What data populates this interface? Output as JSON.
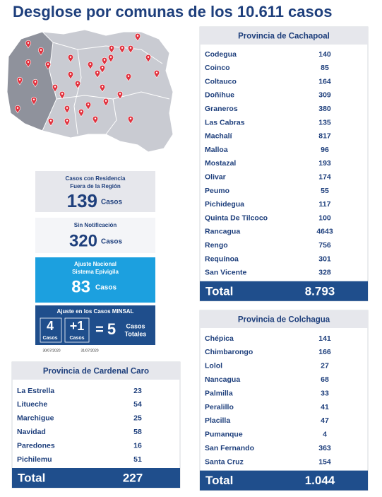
{
  "header": {
    "title": "Desglose por comunas de los 10.611 casos"
  },
  "summary": {
    "outside_region": {
      "label_lines": [
        "Casos con Residencia",
        "Fuera de la Región"
      ],
      "value": "139",
      "unit": "Casos"
    },
    "no_notification": {
      "label": "Sin Notificación",
      "value": "320",
      "unit": "Casos"
    },
    "epivigila": {
      "label_lines": [
        "Ajuste Nacional",
        "Sistema Epivigila"
      ],
      "value": "83",
      "unit": "Casos"
    },
    "minsal": {
      "title": "Ajuste en los Casos MINSAL",
      "first": {
        "value": "4",
        "unit": "Casos",
        "date": "30/07/2020"
      },
      "second": {
        "value": "+1",
        "unit": "Casos",
        "date": "31/07/2020"
      },
      "equals": "=",
      "result": {
        "value": "5",
        "unit_lines": [
          "Casos",
          "Totales"
        ]
      }
    }
  },
  "tables": [
    {
      "title": "Provincia de Cachapoal",
      "rows": [
        [
          "Codegua",
          "140"
        ],
        [
          "Coinco",
          "85"
        ],
        [
          "Coltauco",
          "164"
        ],
        [
          "Doñihue",
          "309"
        ],
        [
          "Graneros",
          "380"
        ],
        [
          "Las Cabras",
          "135"
        ],
        [
          "Machalí",
          "817"
        ],
        [
          "Malloa",
          "96"
        ],
        [
          "Mostazal",
          "193"
        ],
        [
          "Olivar",
          "174"
        ],
        [
          "Peumo",
          "55"
        ],
        [
          "Pichidegua",
          "117"
        ],
        [
          "Quinta De Tilcoco",
          "100"
        ],
        [
          "Rancagua",
          "4643"
        ],
        [
          "Rengo",
          "756"
        ],
        [
          "Requínoa",
          "301"
        ],
        [
          "San Vicente",
          "328"
        ]
      ],
      "total": [
        "Total",
        "8.793"
      ]
    },
    {
      "title": "Provincia de Colchagua",
      "rows": [
        [
          "Chépica",
          "141"
        ],
        [
          "Chimbarongo",
          "166"
        ],
        [
          "Lolol",
          "27"
        ],
        [
          "Nancagua",
          "68"
        ],
        [
          "Palmilla",
          "33"
        ],
        [
          "Peralillo",
          "41"
        ],
        [
          "Placilla",
          "47"
        ],
        [
          "Pumanque",
          "4"
        ],
        [
          "San Fernando",
          "363"
        ],
        [
          "Santa Cruz",
          "154"
        ]
      ],
      "total": [
        "Total",
        "1.044"
      ]
    },
    {
      "title": "Provincia de Cardenal Caro",
      "rows": [
        [
          "La Estrella",
          "23"
        ],
        [
          "Litueche",
          "54"
        ],
        [
          "Marchigue",
          "25"
        ],
        [
          "Navidad",
          "58"
        ],
        [
          "Paredones",
          "16"
        ],
        [
          "Pichilemu",
          "51"
        ]
      ],
      "total": [
        "Total",
        "227"
      ]
    }
  ]
}
